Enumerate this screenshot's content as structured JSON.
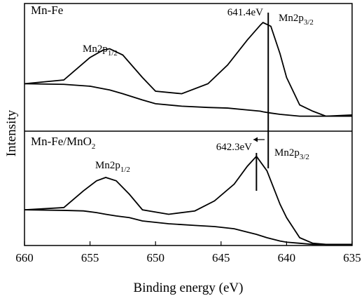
{
  "chart_data": [
    {
      "type": "line",
      "title": "Mn-Fe",
      "ylabel": "Intensity",
      "xlim": [
        660,
        635
      ],
      "ylim": [
        0,
        100
      ],
      "x": [
        660,
        657,
        655,
        654,
        653.5,
        652.5,
        651,
        650,
        648,
        646,
        644.5,
        643,
        642,
        641.8,
        641.2,
        640.5,
        640,
        639,
        638,
        637,
        635
      ],
      "series": [
        {
          "color": "#000000",
          "values": [
            38,
            41,
            59,
            65,
            66,
            61,
            43,
            32,
            30,
            38,
            53,
            73,
            85,
            87,
            84,
            62,
            43,
            21,
            16,
            12,
            13
          ]
        },
        {
          "color": "#000000",
          "values": [
            38,
            37.5,
            36,
            34,
            33,
            30,
            25,
            22,
            20,
            19,
            18.5,
            17,
            16,
            15.5,
            14.5,
            13.5,
            13,
            12,
            12,
            12,
            12
          ]
        }
      ],
      "peak_labels": [
        {
          "text": "Mn2p",
          "sub": "1/2"
        },
        {
          "text": "Mn2p",
          "sub": "3/2"
        }
      ],
      "annotation": {
        "value": 641.4,
        "label": "641.4eV"
      }
    },
    {
      "type": "line",
      "title": "Mn-Fe/MnO",
      "title_sub": "2",
      "xlabel": "Binding energy (eV)",
      "xlim": [
        660,
        635
      ],
      "ylim": [
        0,
        100
      ],
      "xticks": [
        660,
        655,
        650,
        645,
        640,
        635
      ],
      "x": [
        660,
        657,
        655.5,
        654.5,
        653.8,
        653,
        652,
        651,
        649,
        647,
        645.5,
        644,
        643,
        642.3,
        641.5,
        640.5,
        640,
        639,
        638,
        637,
        635
      ],
      "series": [
        {
          "color": "#000000",
          "values": [
            32,
            34,
            49,
            58,
            61,
            58,
            46,
            32,
            28,
            31,
            40,
            55,
            71,
            80,
            67,
            37,
            25,
            7,
            2,
            1,
            1
          ]
        },
        {
          "color": "#000000",
          "values": [
            32,
            31.5,
            31,
            29.5,
            28,
            26.5,
            25,
            22,
            19.5,
            18,
            17,
            15,
            12,
            10,
            7,
            4,
            3,
            2,
            1,
            1,
            1
          ]
        }
      ],
      "peak_labels": [
        {
          "text": "Mn2p",
          "sub": "1/2"
        },
        {
          "text": "Mn2p",
          "sub": "3/2"
        }
      ],
      "annotation": {
        "value": 642.3,
        "label": "642.3eV"
      }
    }
  ]
}
